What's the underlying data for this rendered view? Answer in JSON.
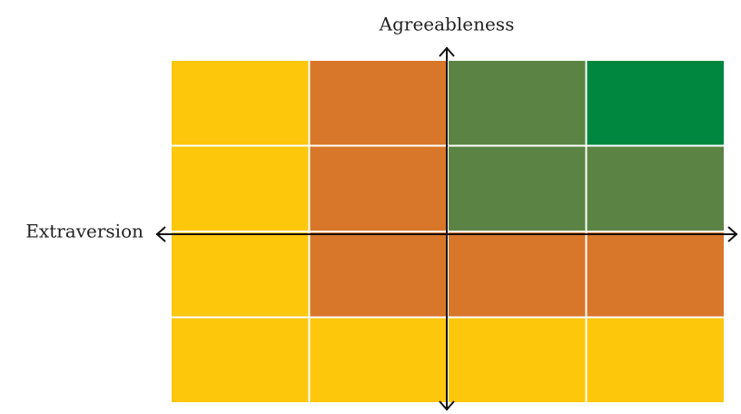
{
  "y_axis_label": "Agreeableness",
  "x_axis_label": "Extraversion",
  "grid": {
    "rows": [
      [
        "#fdc70c",
        "#d87729",
        "#5b8444",
        "#00873f"
      ],
      [
        "#fdc70c",
        "#d87729",
        "#5b8444",
        "#5b8444"
      ],
      [
        "#fdc70c",
        "#d87729",
        "#d87729",
        "#d87729"
      ],
      [
        "#fdc70c",
        "#fdc70c",
        "#fdc70c",
        "#fdc70c"
      ]
    ]
  }
}
